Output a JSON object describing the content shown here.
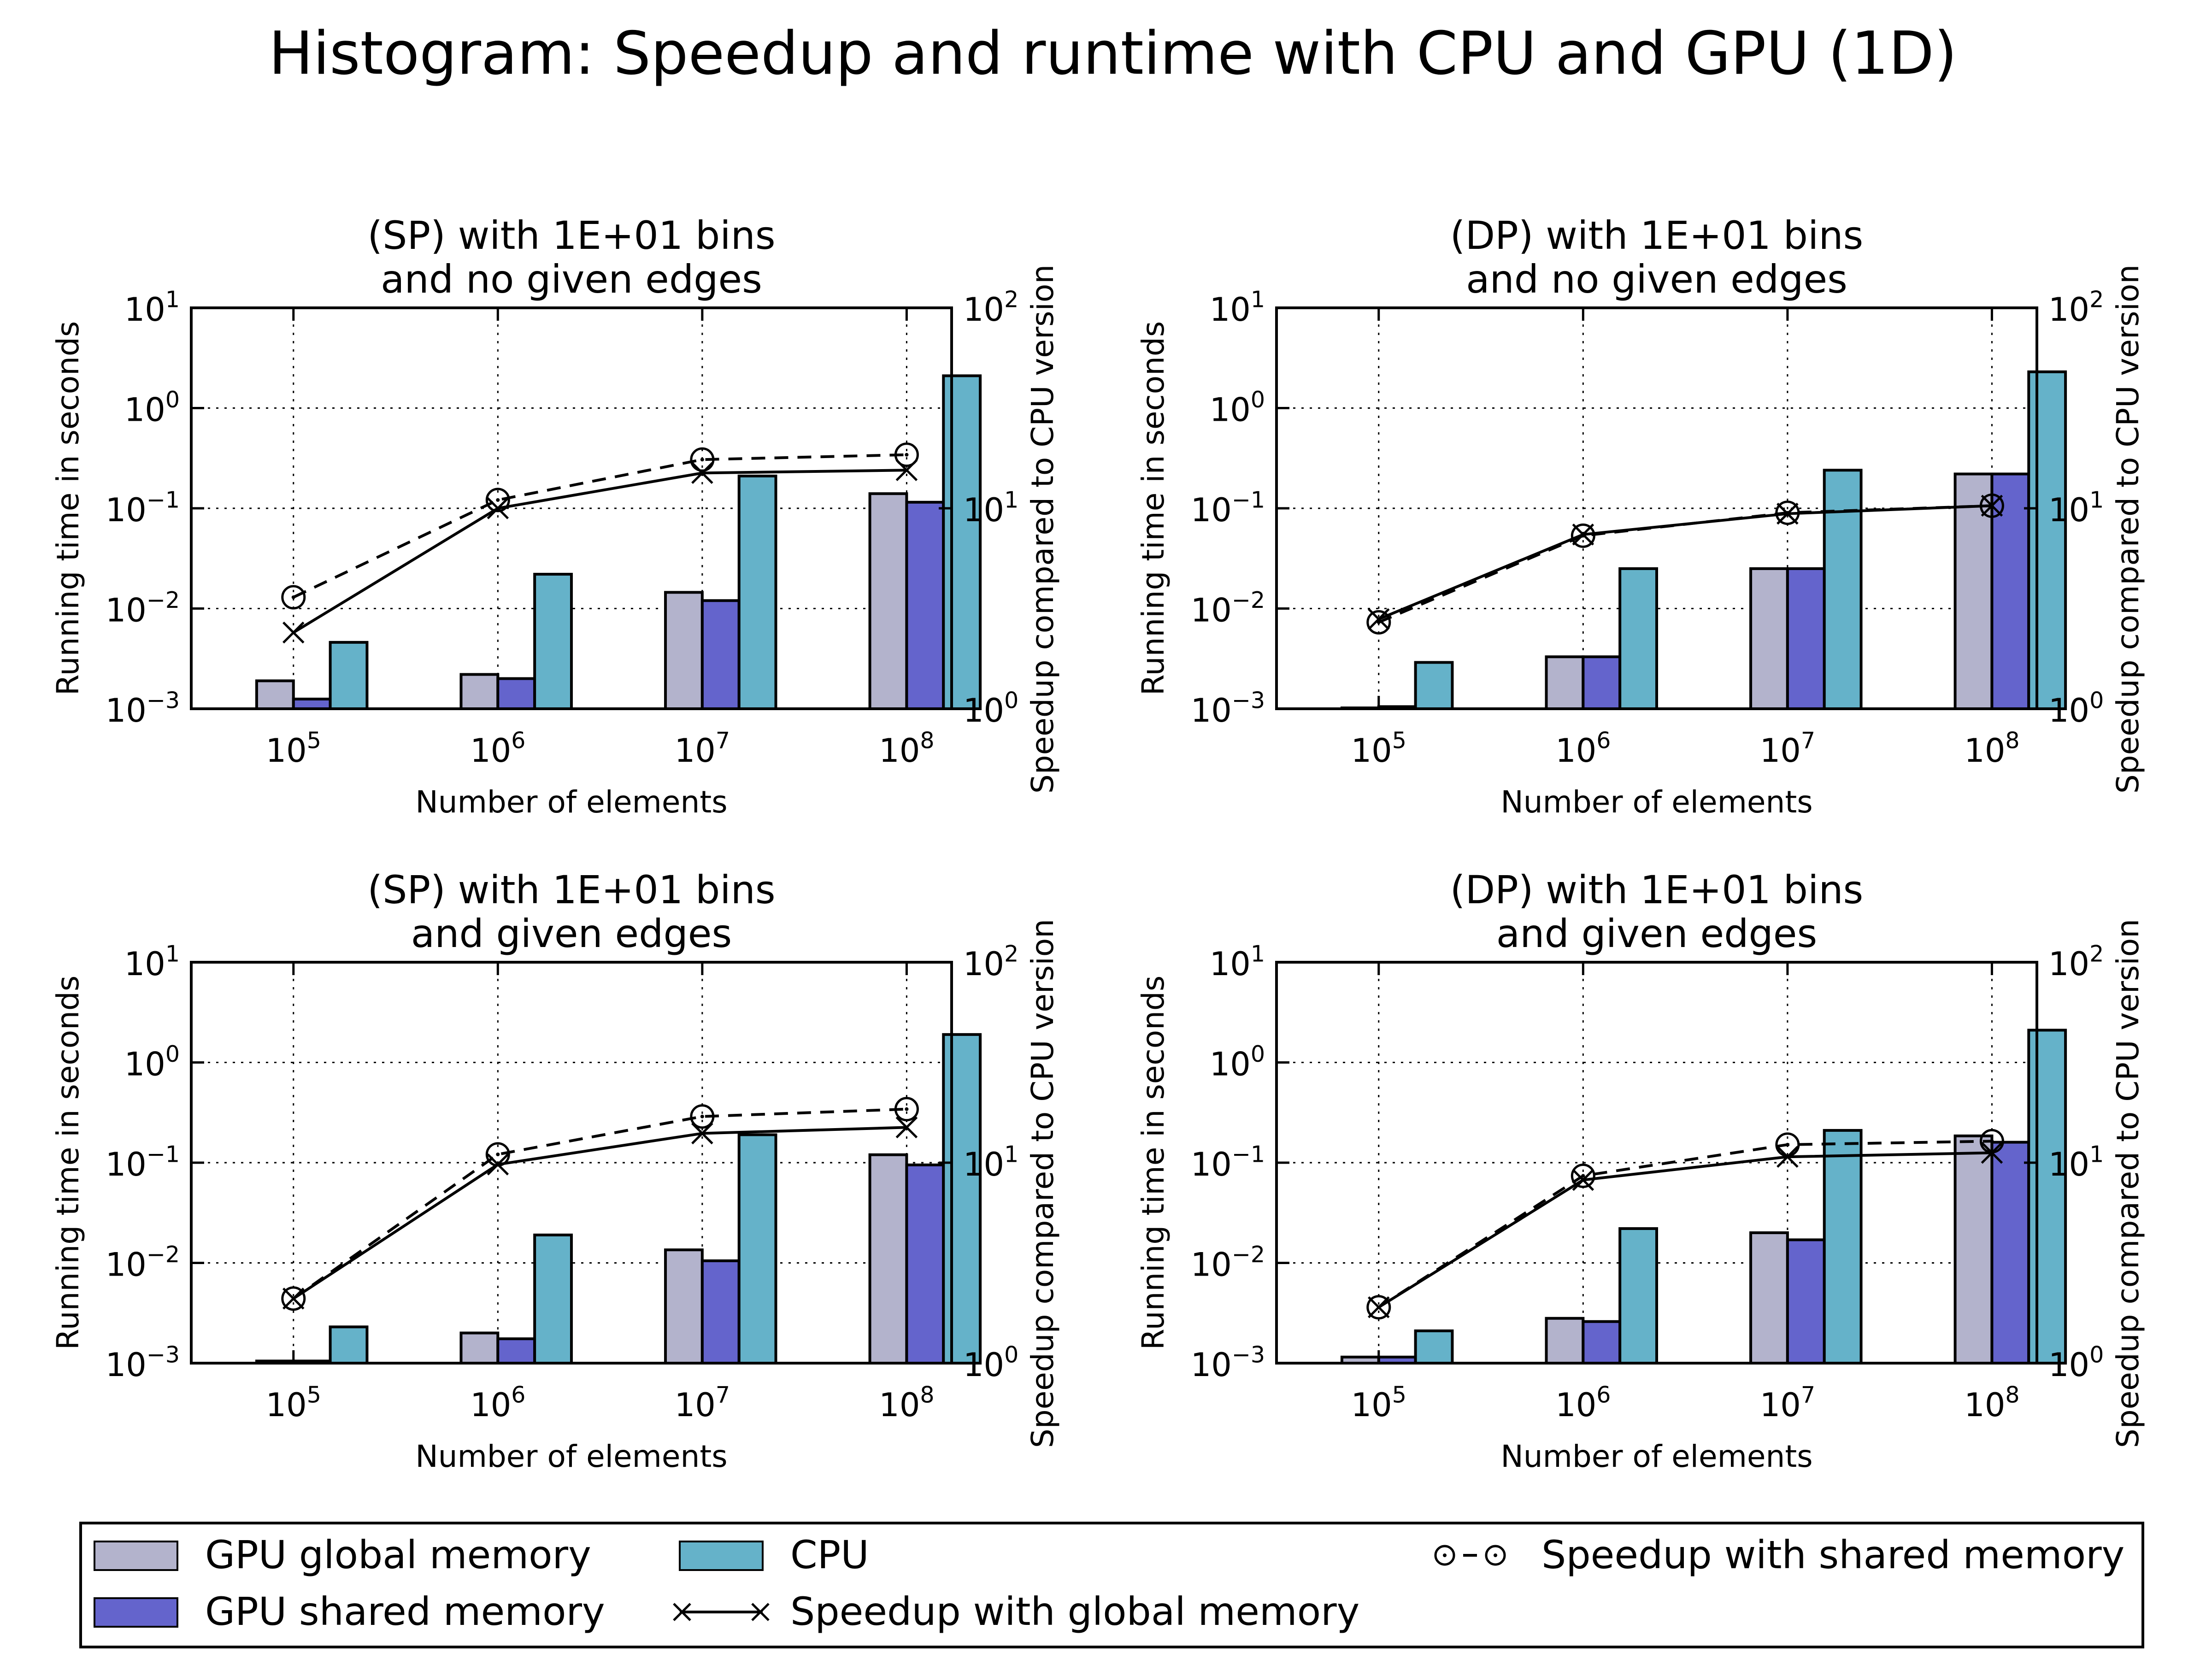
{
  "page": {
    "title": "Histogram: Speedup and runtime with CPU and GPU (1D)"
  },
  "colors": {
    "gpu_global": "#b3b3cc",
    "gpu_shared": "#6464cc",
    "cpu": "#65b2c9",
    "line": "#000000"
  },
  "legend": {
    "gpu_global": "GPU global memory",
    "gpu_shared": "GPU shared memory",
    "cpu": "CPU",
    "speedup_global": "Speedup with global memory",
    "speedup_shared": "Speedup with shared memory"
  },
  "chart_data": [
    {
      "type": "bar",
      "title": "(SP) with 1E+01 bins\nand no given edges",
      "xlabel": "Number of elements",
      "ylabel": "Running time in seconds",
      "y2label": "Speedup compared to CPU version",
      "x": [
        100000,
        1000000,
        10000000,
        100000000
      ],
      "x_tick_exponents": [
        "5",
        "6",
        "7",
        "8"
      ],
      "yscale": "log",
      "ylim": [
        0.001,
        10
      ],
      "y_tick_exponents": [
        "-3",
        "-2",
        "-1",
        "0",
        "1"
      ],
      "y2scale": "log",
      "y2lim": [
        1,
        100
      ],
      "y2_tick_exponents": [
        "0",
        "1",
        "2"
      ],
      "grid": true,
      "series": [
        {
          "key": "gpu_global",
          "kind": "bar",
          "axis": "left",
          "values": [
            0.0019,
            0.0022,
            0.0145,
            0.14
          ]
        },
        {
          "key": "gpu_shared",
          "kind": "bar",
          "axis": "left",
          "values": [
            0.00125,
            0.002,
            0.012,
            0.115
          ]
        },
        {
          "key": "cpu",
          "kind": "bar",
          "axis": "left",
          "values": [
            0.0046,
            0.022,
            0.21,
            2.1
          ]
        },
        {
          "key": "speedup_global",
          "kind": "line",
          "axis": "right",
          "values": [
            2.4,
            10,
            15,
            15.5
          ]
        },
        {
          "key": "speedup_shared",
          "kind": "line",
          "axis": "right",
          "values": [
            3.6,
            11,
            17.5,
            18.5
          ]
        }
      ]
    },
    {
      "type": "bar",
      "title": "(DP) with 1E+01 bins\nand no given edges",
      "xlabel": "Number of elements",
      "ylabel": "Running time in seconds",
      "y2label": "Speedup compared to CPU version",
      "x": [
        100000,
        1000000,
        10000000,
        100000000
      ],
      "x_tick_exponents": [
        "5",
        "6",
        "7",
        "8"
      ],
      "yscale": "log",
      "ylim": [
        0.001,
        10
      ],
      "y_tick_exponents": [
        "-3",
        "-2",
        "-1",
        "0",
        "1"
      ],
      "y2scale": "log",
      "y2lim": [
        1,
        100
      ],
      "y2_tick_exponents": [
        "0",
        "1",
        "2"
      ],
      "grid": true,
      "series": [
        {
          "key": "gpu_global",
          "kind": "bar",
          "axis": "left",
          "values": [
            0.00102,
            0.0033,
            0.025,
            0.22
          ]
        },
        {
          "key": "gpu_shared",
          "kind": "bar",
          "axis": "left",
          "values": [
            0.00105,
            0.0033,
            0.025,
            0.22
          ]
        },
        {
          "key": "cpu",
          "kind": "bar",
          "axis": "left",
          "values": [
            0.0029,
            0.025,
            0.24,
            2.3
          ]
        },
        {
          "key": "speedup_global",
          "kind": "line",
          "axis": "right",
          "values": [
            2.8,
            7.4,
            9.4,
            10.3
          ]
        },
        {
          "key": "speedup_shared",
          "kind": "line",
          "axis": "right",
          "values": [
            2.7,
            7.3,
            9.5,
            10.3
          ]
        }
      ]
    },
    {
      "type": "bar",
      "title": "(SP) with 1E+01 bins\nand given edges",
      "xlabel": "Number of elements",
      "ylabel": "Running time in seconds",
      "y2label": "Speedup compared to CPU version",
      "x": [
        100000,
        1000000,
        10000000,
        100000000
      ],
      "x_tick_exponents": [
        "5",
        "6",
        "7",
        "8"
      ],
      "yscale": "log",
      "ylim": [
        0.001,
        10
      ],
      "y_tick_exponents": [
        "-3",
        "-2",
        "-1",
        "0",
        "1"
      ],
      "y2scale": "log",
      "y2lim": [
        1,
        100
      ],
      "y2_tick_exponents": [
        "0",
        "1",
        "2"
      ],
      "grid": true,
      "series": [
        {
          "key": "gpu_global",
          "kind": "bar",
          "axis": "left",
          "values": [
            0.00105,
            0.002,
            0.0135,
            0.12
          ]
        },
        {
          "key": "gpu_shared",
          "kind": "bar",
          "axis": "left",
          "values": [
            0.00105,
            0.00175,
            0.0105,
            0.095
          ]
        },
        {
          "key": "cpu",
          "kind": "bar",
          "axis": "left",
          "values": [
            0.0023,
            0.019,
            0.19,
            1.9
          ]
        },
        {
          "key": "speedup_global",
          "kind": "line",
          "axis": "right",
          "values": [
            2.1,
            9.8,
            14,
            15
          ]
        },
        {
          "key": "speedup_shared",
          "kind": "line",
          "axis": "right",
          "values": [
            2.1,
            11,
            17,
            18.5
          ]
        }
      ]
    },
    {
      "type": "bar",
      "title": "(DP) with 1E+01 bins\nand given edges",
      "xlabel": "Number of elements",
      "ylabel": "Running time in seconds",
      "y2label": "Speedup compared to CPU version",
      "x": [
        100000,
        1000000,
        10000000,
        100000000
      ],
      "x_tick_exponents": [
        "5",
        "6",
        "7",
        "8"
      ],
      "yscale": "log",
      "ylim": [
        0.001,
        10
      ],
      "y_tick_exponents": [
        "-3",
        "-2",
        "-1",
        "0",
        "1"
      ],
      "y2scale": "log",
      "y2lim": [
        1,
        100
      ],
      "y2_tick_exponents": [
        "0",
        "1",
        "2"
      ],
      "grid": true,
      "series": [
        {
          "key": "gpu_global",
          "kind": "bar",
          "axis": "left",
          "values": [
            0.00115,
            0.0028,
            0.02,
            0.185
          ]
        },
        {
          "key": "gpu_shared",
          "kind": "bar",
          "axis": "left",
          "values": [
            0.00115,
            0.0026,
            0.017,
            0.16
          ]
        },
        {
          "key": "cpu",
          "kind": "bar",
          "axis": "left",
          "values": [
            0.0021,
            0.022,
            0.21,
            2.1
          ]
        },
        {
          "key": "speedup_global",
          "kind": "line",
          "axis": "right",
          "values": [
            1.9,
            8.2,
            10.7,
            11.2
          ]
        },
        {
          "key": "speedup_shared",
          "kind": "line",
          "axis": "right",
          "values": [
            1.9,
            8.6,
            12.3,
            12.8
          ]
        }
      ]
    }
  ]
}
